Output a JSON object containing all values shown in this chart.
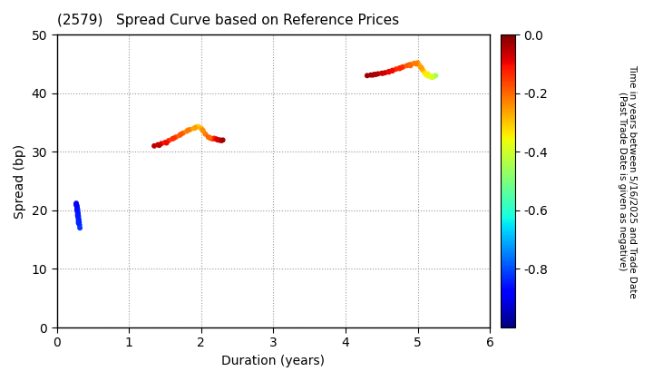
{
  "title": "(2579)   Spread Curve based on Reference Prices",
  "xlabel": "Duration (years)",
  "ylabel": "Spread (bp)",
  "xlim": [
    0,
    6
  ],
  "ylim": [
    0,
    50
  ],
  "xticks": [
    0,
    1,
    2,
    3,
    4,
    5,
    6
  ],
  "yticks": [
    0,
    10,
    20,
    30,
    40,
    50
  ],
  "colorbar_label": "Time in years between 5/16/2025 and Trade Date\n(Past Trade Date is given as negative)",
  "colorbar_vmin": -1.0,
  "colorbar_vmax": 0.0,
  "colorbar_ticks": [
    0.0,
    -0.2,
    -0.4,
    -0.6,
    -0.8
  ],
  "background_color": "#ffffff",
  "grid_color": "#999999",
  "marker_size": 18,
  "colormap": "jet",
  "cluster1": {
    "durations": [
      0.27,
      0.28,
      0.285,
      0.29,
      0.295,
      0.3,
      0.305,
      0.31,
      0.315,
      0.32,
      0.275,
      0.28,
      0.285,
      0.29,
      0.295,
      0.3,
      0.305,
      0.28,
      0.29,
      0.3,
      0.27,
      0.275
    ],
    "spreads": [
      21.0,
      20.6,
      20.3,
      20.0,
      19.5,
      19.0,
      18.5,
      18.0,
      17.5,
      17.0,
      20.8,
      20.4,
      19.8,
      19.3,
      18.8,
      18.3,
      17.8,
      20.2,
      19.1,
      17.9,
      21.2,
      20.9
    ],
    "colors": [
      -0.87,
      -0.86,
      -0.855,
      -0.85,
      -0.845,
      -0.84,
      -0.835,
      -0.83,
      -0.825,
      -0.82,
      -0.875,
      -0.865,
      -0.858,
      -0.852,
      -0.847,
      -0.842,
      -0.837,
      -0.862,
      -0.848,
      -0.838,
      -0.878,
      -0.872
    ]
  },
  "cluster2": {
    "durations": [
      1.35,
      1.4,
      1.45,
      1.5,
      1.55,
      1.6,
      1.65,
      1.7,
      1.75,
      1.8,
      1.85,
      1.9,
      1.93,
      1.96,
      2.0,
      2.03,
      2.06,
      2.1,
      2.13,
      2.16,
      2.18,
      2.2,
      2.22,
      2.24,
      2.26,
      2.28,
      2.3,
      1.42,
      1.52,
      1.62,
      1.72,
      1.82,
      1.92,
      2.02,
      2.12,
      2.22
    ],
    "spreads": [
      31.0,
      31.2,
      31.4,
      31.6,
      31.9,
      32.2,
      32.5,
      32.8,
      33.2,
      33.5,
      33.8,
      34.0,
      34.2,
      34.3,
      34.0,
      33.5,
      33.0,
      32.5,
      32.3,
      32.2,
      32.3,
      32.2,
      32.1,
      32.0,
      32.0,
      31.9,
      32.0,
      31.1,
      31.5,
      32.3,
      33.0,
      33.7,
      34.1,
      33.7,
      32.4,
      32.1
    ],
    "colors": [
      -0.05,
      -0.07,
      -0.09,
      -0.11,
      -0.13,
      -0.15,
      -0.17,
      -0.19,
      -0.21,
      -0.23,
      -0.25,
      -0.27,
      -0.29,
      -0.31,
      -0.28,
      -0.25,
      -0.22,
      -0.19,
      -0.17,
      -0.15,
      -0.13,
      -0.11,
      -0.09,
      -0.07,
      -0.05,
      -0.04,
      -0.03,
      -0.06,
      -0.1,
      -0.14,
      -0.18,
      -0.22,
      -0.26,
      -0.24,
      -0.2,
      -0.08
    ]
  },
  "cluster3": {
    "durations": [
      4.3,
      4.35,
      4.4,
      4.45,
      4.5,
      4.55,
      4.6,
      4.65,
      4.7,
      4.75,
      4.8,
      4.85,
      4.9,
      4.95,
      5.0,
      5.02,
      5.05,
      5.08,
      5.1,
      5.12,
      5.15,
      5.18,
      5.2,
      5.22,
      5.25,
      4.38,
      4.52,
      4.65,
      4.78,
      4.88,
      4.98,
      5.06,
      5.14,
      5.2,
      4.42,
      4.6,
      4.75,
      4.9,
      5.05,
      5.18
    ],
    "spreads": [
      43.0,
      43.1,
      43.2,
      43.3,
      43.4,
      43.5,
      43.7,
      43.9,
      44.1,
      44.3,
      44.5,
      44.7,
      44.9,
      45.1,
      45.2,
      44.8,
      44.3,
      43.8,
      43.4,
      43.1,
      42.9,
      42.8,
      42.7,
      42.8,
      43.0,
      43.1,
      43.4,
      43.8,
      44.4,
      44.8,
      45.0,
      44.1,
      43.3,
      42.8,
      43.2,
      43.6,
      44.2,
      44.7,
      44.4,
      42.9
    ],
    "colors": [
      -0.02,
      -0.03,
      -0.04,
      -0.05,
      -0.06,
      -0.07,
      -0.09,
      -0.11,
      -0.13,
      -0.15,
      -0.17,
      -0.19,
      -0.21,
      -0.23,
      -0.25,
      -0.27,
      -0.29,
      -0.31,
      -0.33,
      -0.35,
      -0.37,
      -0.39,
      -0.41,
      -0.43,
      -0.45,
      -0.035,
      -0.065,
      -0.1,
      -0.14,
      -0.18,
      -0.22,
      -0.28,
      -0.34,
      -0.4,
      -0.045,
      -0.095,
      -0.13,
      -0.2,
      -0.26,
      -0.38
    ]
  }
}
